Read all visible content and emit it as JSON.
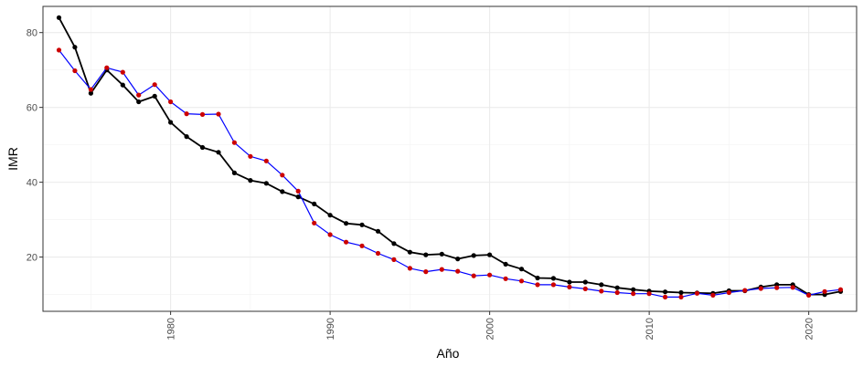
{
  "chart_data": {
    "type": "line",
    "title": "",
    "xlabel": "Año",
    "ylabel": "IMR",
    "xlim": [
      1972,
      2023
    ],
    "ylim": [
      5.5,
      87
    ],
    "x_ticks": [
      1980,
      1990,
      2000,
      2010,
      2020
    ],
    "y_ticks": [
      20,
      40,
      60,
      80
    ],
    "grid": true,
    "legend": "none",
    "colors": {
      "observed": "#000000",
      "fitted_line": "#0000ff",
      "fitted_points": "#cc0000",
      "grid_major": "#ebebeb",
      "grid_minor": "#f2f2f2",
      "panel_border": "#333333"
    },
    "x": [
      1973,
      1974,
      1975,
      1976,
      1977,
      1978,
      1979,
      1980,
      1981,
      1982,
      1983,
      1984,
      1985,
      1986,
      1987,
      1988,
      1989,
      1990,
      1991,
      1992,
      1993,
      1994,
      1995,
      1996,
      1997,
      1998,
      1999,
      2000,
      2001,
      2002,
      2003,
      2004,
      2005,
      2006,
      2007,
      2008,
      2009,
      2010,
      2011,
      2012,
      2013,
      2014,
      2015,
      2016,
      2017,
      2018,
      2019,
      2020,
      2021,
      2022
    ],
    "series": [
      {
        "values": [
          84.0,
          76.1,
          63.8,
          70.0,
          66.0,
          61.5,
          63.0,
          56.0,
          52.2,
          49.3,
          48.0,
          42.5,
          40.5,
          39.7,
          37.5,
          36.1,
          34.2,
          31.2,
          29.0,
          28.6,
          26.9,
          23.6,
          21.3,
          20.6,
          20.8,
          19.5,
          20.4,
          20.6,
          18.1,
          16.8,
          14.4,
          14.3,
          13.3,
          13.3,
          12.6,
          11.8,
          11.3,
          10.9,
          10.7,
          10.5,
          10.4,
          10.3,
          11.0,
          11.0,
          12.0,
          12.6,
          12.6,
          10.0,
          10.0,
          10.8
        ]
      },
      {
        "values": [
          75.3,
          69.8,
          64.8,
          70.6,
          69.4,
          63.3,
          66.1,
          61.5,
          58.3,
          58.1,
          58.2,
          50.6,
          46.9,
          45.7,
          41.9,
          37.6,
          29.1,
          26.0,
          24.0,
          23.0,
          21.0,
          19.3,
          17.0,
          16.1,
          16.7,
          16.2,
          15.0,
          15.2,
          14.2,
          13.6,
          12.6,
          12.6,
          12.0,
          11.5,
          10.9,
          10.5,
          10.2,
          10.2,
          9.3,
          9.3,
          10.3,
          9.8,
          10.5,
          11.1,
          11.6,
          11.8,
          11.9,
          9.8,
          10.8,
          11.3
        ]
      }
    ]
  }
}
